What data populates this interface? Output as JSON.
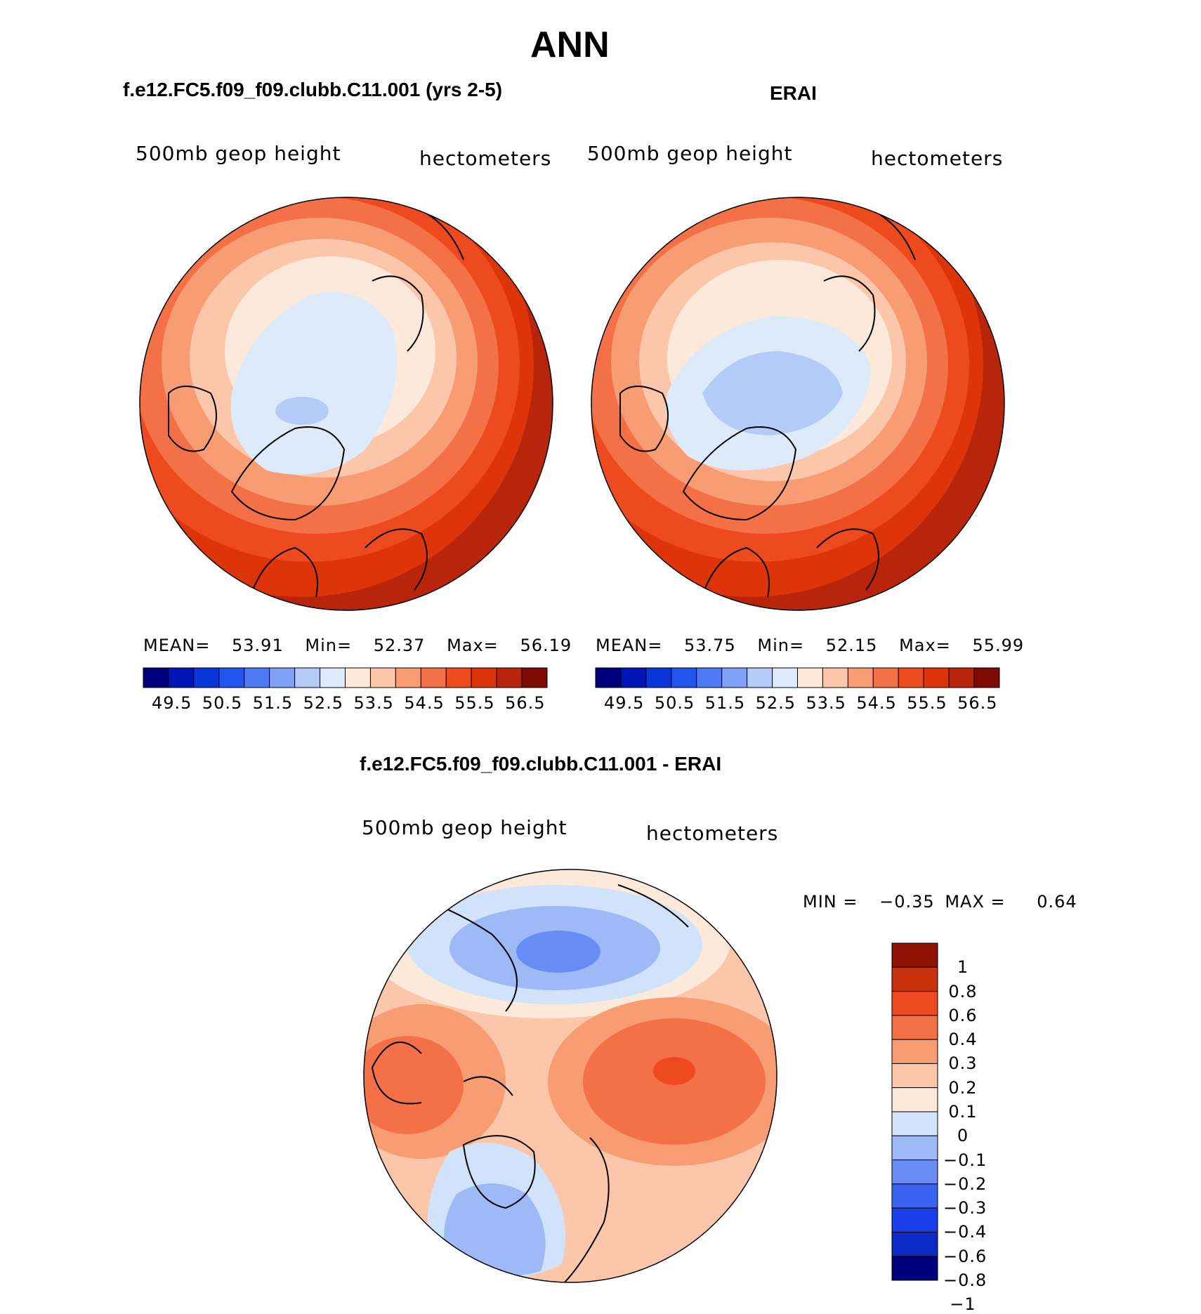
{
  "page_title": "ANN",
  "colors": {
    "seq_palette": [
      "#00007f",
      "#0015b5",
      "#0a35d8",
      "#2055f0",
      "#4d7af5",
      "#7fa1f7",
      "#b3cbf6",
      "#dceafa",
      "#fde9da",
      "#fcc6ab",
      "#f89c74",
      "#f47148",
      "#ee4a1f",
      "#dd3409",
      "#b8250a",
      "#7f0a04"
    ],
    "diff_palette": [
      "#00007f",
      "#0c2ac6",
      "#1a3ee8",
      "#3a63f2",
      "#6a8cf5",
      "#9dbaf6",
      "#d0e3fa",
      "#fde9da",
      "#fcc6ab",
      "#f89c74",
      "#f47148",
      "#ee4a1f",
      "#c7320c",
      "#8f1206"
    ]
  },
  "panels": [
    {
      "id": "model",
      "title": "f.e12.FC5.f09_f09.clubb.C11.001 (yrs 2-5)",
      "variable": "500mb geop height",
      "units": "hectometers",
      "stats": {
        "mean_label": "MEAN=",
        "mean": "53.91",
        "min_label": "Min=",
        "min": "52.37",
        "max_label": "Max=",
        "max": "56.19"
      },
      "colorbar_labels": [
        "49.5",
        "50.5",
        "51.5",
        "52.5",
        "53.5",
        "54.5",
        "55.5",
        "56.5"
      ]
    },
    {
      "id": "obs",
      "title": "ERAI",
      "variable": "500mb geop height",
      "units": "hectometers",
      "stats": {
        "mean_label": "MEAN=",
        "mean": "53.75",
        "min_label": "Min=",
        "min": "52.15",
        "max_label": "Max=",
        "max": "55.99"
      },
      "colorbar_labels": [
        "49.5",
        "50.5",
        "51.5",
        "52.5",
        "53.5",
        "54.5",
        "55.5",
        "56.5"
      ]
    },
    {
      "id": "diff",
      "title": "f.e12.FC5.f09_f09.clubb.C11.001 - ERAI",
      "variable": "500mb geop height",
      "units": "hectometers",
      "stats": {
        "min_label": "MIN =",
        "min": "−0.35",
        "max_label": "MAX =",
        "max": "0.64"
      },
      "colorbar_labels": [
        "1",
        "0.8",
        "0.6",
        "0.4",
        "0.3",
        "0.2",
        "0.1",
        "0",
        "−0.1",
        "−0.2",
        "−0.3",
        "−0.4",
        "−0.6",
        "−0.8",
        "−1"
      ]
    }
  ]
}
